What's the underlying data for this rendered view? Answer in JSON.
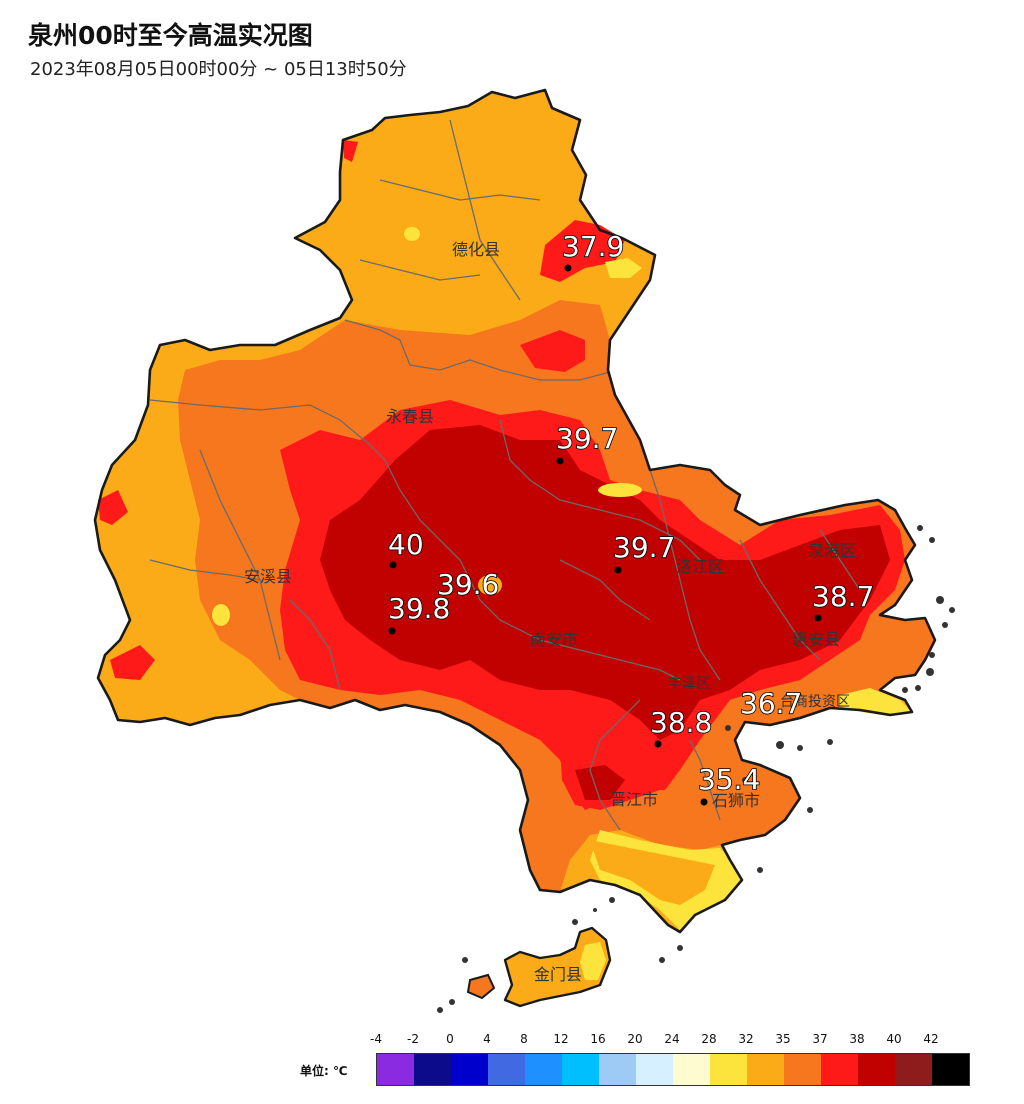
{
  "title": "泉州00时至今高温实况图",
  "subtitle": "2023年08月05日00时00分 ~ 05日13时50分",
  "counties": [
    {
      "name": "德化县"
    },
    {
      "name": "永春县"
    },
    {
      "name": "安溪县"
    },
    {
      "name": "南安市"
    },
    {
      "name": "洛江区"
    },
    {
      "name": "泉港区"
    },
    {
      "name": "惠安县"
    },
    {
      "name": "台商投资区"
    },
    {
      "name": "丰泽区"
    },
    {
      "name": "晋江市"
    },
    {
      "name": "石狮市"
    },
    {
      "name": "金门县"
    }
  ],
  "stations": [
    {
      "value": "37.9"
    },
    {
      "value": "39.7"
    },
    {
      "value": "40"
    },
    {
      "value": "39.6"
    },
    {
      "value": "39.8"
    },
    {
      "value": "39.7"
    },
    {
      "value": "38.7"
    },
    {
      "value": "36.7"
    },
    {
      "value": "38.8"
    },
    {
      "value": "35.4"
    }
  ],
  "legend": {
    "unit_label": "单位: ℃",
    "ticks": [
      "-4",
      "-2",
      "0",
      "4",
      "8",
      "12",
      "16",
      "20",
      "24",
      "28",
      "32",
      "35",
      "37",
      "38",
      "40",
      "42"
    ],
    "colors": [
      "#8a2be2",
      "#0b0b8c",
      "#0000cd",
      "#4169e1",
      "#1e90ff",
      "#00bfff",
      "#9ecbf5",
      "#d6f0ff",
      "#fffbd0",
      "#fde43c",
      "#fbab18",
      "#f7771e",
      "#ff1a1a",
      "#c10000",
      "#8f1c1c",
      "#000000"
    ]
  },
  "map_colors": {
    "yellow": "#fde43c",
    "light_orange": "#fbab18",
    "orange": "#f7771e",
    "red": "#ff1a1a",
    "dark_red": "#c10000",
    "border": "#1a1a1a"
  }
}
